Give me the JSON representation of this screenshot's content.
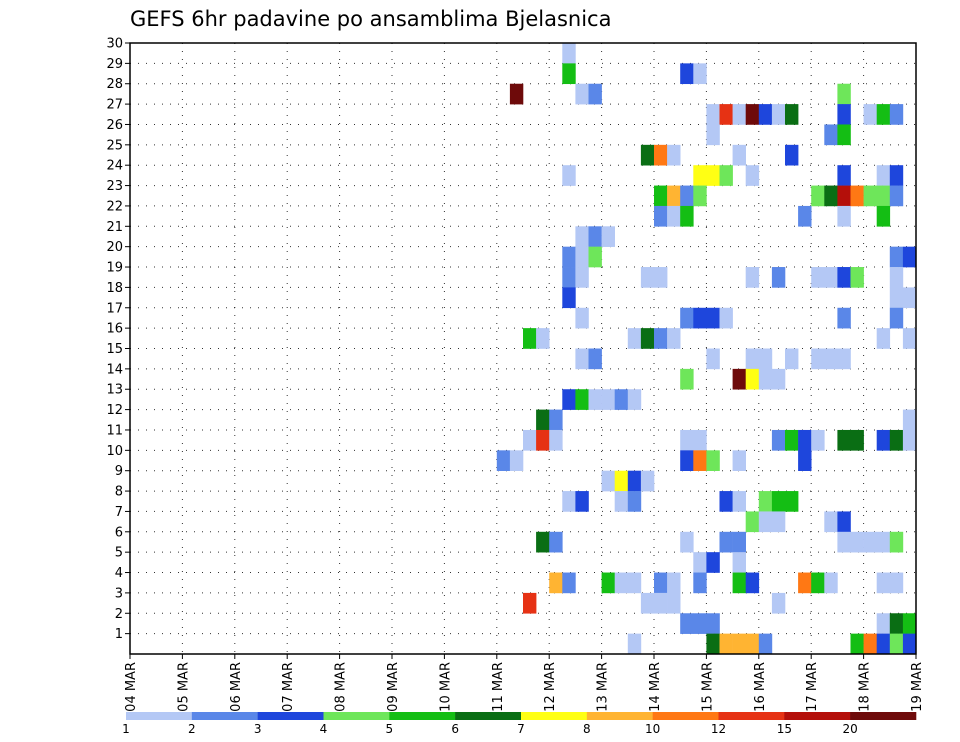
{
  "chart_data": {
    "type": "heatmap",
    "title": "GEFS 6hr padavine po ansamblima Bjelasnica",
    "x_tick_labels": [
      "04 MAR",
      "05 MAR",
      "06 MAR",
      "07 MAR",
      "08 MAR",
      "09 MAR",
      "10 MAR",
      "11 MAR",
      "12 MAR",
      "13 MAR",
      "14 MAR",
      "15 MAR",
      "16 MAR",
      "17 MAR",
      "18 MAR",
      "19 MAR"
    ],
    "y_tick_labels": [
      "1",
      "2",
      "3",
      "4",
      "5",
      "6",
      "7",
      "8",
      "9",
      "10",
      "11",
      "12",
      "13",
      "14",
      "15",
      "16",
      "17",
      "18",
      "19",
      "20",
      "21",
      "22",
      "23",
      "24",
      "25",
      "26",
      "27",
      "28",
      "29",
      "30"
    ],
    "x_range_days": [
      4,
      19
    ],
    "y_range": [
      0,
      30
    ],
    "grid": "dotted",
    "legend_position": "bottom",
    "colorbar": {
      "labels": [
        "1",
        "2",
        "3",
        "4",
        "5",
        "6",
        "7",
        "8",
        "10",
        "12",
        "15",
        "20"
      ],
      "colors": [
        "#b4c8f5",
        "#5a87e8",
        "#1e46dc",
        "#6ee65a",
        "#14be14",
        "#0a6e14",
        "#ffff14",
        "#ffb432",
        "#ff7814",
        "#e63214",
        "#b40f0a",
        "#6e0a0a"
      ]
    },
    "cells": [
      [
        12.25,
        30,
        0
      ],
      [
        12.25,
        29,
        4
      ],
      [
        12.5,
        28,
        0
      ],
      [
        12.75,
        28,
        1
      ],
      [
        14.5,
        29,
        2
      ],
      [
        14.75,
        29,
        0
      ],
      [
        11.25,
        28,
        11
      ],
      [
        17.5,
        28,
        3
      ],
      [
        15,
        27,
        0
      ],
      [
        15.25,
        27,
        9
      ],
      [
        15.5,
        27,
        0
      ],
      [
        15.75,
        27,
        11
      ],
      [
        16,
        27,
        2
      ],
      [
        16.25,
        27,
        0
      ],
      [
        16.5,
        27,
        5
      ],
      [
        17.5,
        27,
        2
      ],
      [
        18,
        27,
        0
      ],
      [
        18.25,
        27,
        4
      ],
      [
        18.5,
        27,
        1
      ],
      [
        15,
        26,
        0
      ],
      [
        17.25,
        26,
        1
      ],
      [
        17.5,
        26,
        4
      ],
      [
        13.75,
        25,
        5
      ],
      [
        14,
        25,
        8
      ],
      [
        14.25,
        25,
        0
      ],
      [
        15.5,
        25,
        0
      ],
      [
        16.5,
        25,
        2
      ],
      [
        12.25,
        24,
        0
      ],
      [
        14.75,
        24,
        6
      ],
      [
        15,
        24,
        6
      ],
      [
        15.25,
        24,
        3
      ],
      [
        15.75,
        24,
        0
      ],
      [
        17.5,
        24,
        2
      ],
      [
        18.25,
        24,
        0
      ],
      [
        18.5,
        24,
        2
      ],
      [
        14,
        23,
        4
      ],
      [
        14.25,
        23,
        7
      ],
      [
        14.5,
        23,
        1
      ],
      [
        14.75,
        23,
        3
      ],
      [
        17,
        23,
        3
      ],
      [
        17.25,
        23,
        5
      ],
      [
        17.5,
        23,
        10
      ],
      [
        17.75,
        23,
        8
      ],
      [
        18,
        23,
        3
      ],
      [
        18.25,
        23,
        3
      ],
      [
        18.5,
        23,
        1
      ],
      [
        14,
        22,
        1
      ],
      [
        14.25,
        22,
        0
      ],
      [
        14.5,
        22,
        4
      ],
      [
        16.75,
        22,
        1
      ],
      [
        17.5,
        22,
        0
      ],
      [
        18.25,
        22,
        4
      ],
      [
        12.5,
        21,
        0
      ],
      [
        12.75,
        21,
        1
      ],
      [
        13,
        21,
        0
      ],
      [
        18.5,
        20,
        1
      ],
      [
        18.75,
        20,
        2
      ],
      [
        12.25,
        20,
        1
      ],
      [
        12.5,
        20,
        0
      ],
      [
        12.75,
        20,
        3
      ],
      [
        12.25,
        19,
        1
      ],
      [
        12.5,
        19,
        0
      ],
      [
        13.75,
        19,
        0
      ],
      [
        14,
        19,
        0
      ],
      [
        15.75,
        19,
        0
      ],
      [
        16.25,
        19,
        1
      ],
      [
        17,
        19,
        0
      ],
      [
        17.25,
        19,
        0
      ],
      [
        17.5,
        19,
        2
      ],
      [
        17.75,
        19,
        3
      ],
      [
        18.5,
        19,
        0
      ],
      [
        12.25,
        18,
        2
      ],
      [
        18.5,
        18,
        0
      ],
      [
        18.75,
        18,
        0
      ],
      [
        12.5,
        17,
        0
      ],
      [
        14.5,
        17,
        1
      ],
      [
        14.75,
        17,
        2
      ],
      [
        15,
        17,
        2
      ],
      [
        15.25,
        17,
        0
      ],
      [
        17.5,
        17,
        1
      ],
      [
        18.5,
        17,
        1
      ],
      [
        11.5,
        16,
        4
      ],
      [
        11.75,
        16,
        0
      ],
      [
        13.5,
        16,
        0
      ],
      [
        13.75,
        16,
        5
      ],
      [
        14,
        16,
        1
      ],
      [
        14.25,
        16,
        0
      ],
      [
        18.25,
        16,
        0
      ],
      [
        18.75,
        16,
        0
      ],
      [
        12.5,
        15,
        0
      ],
      [
        12.75,
        15,
        1
      ],
      [
        15,
        15,
        0
      ],
      [
        15.75,
        15,
        0
      ],
      [
        16,
        15,
        0
      ],
      [
        16.5,
        15,
        0
      ],
      [
        17,
        15,
        0
      ],
      [
        17.25,
        15,
        0
      ],
      [
        17.5,
        15,
        0
      ],
      [
        14.5,
        14,
        3
      ],
      [
        15.5,
        14,
        11
      ],
      [
        15.75,
        14,
        6
      ],
      [
        16,
        14,
        0
      ],
      [
        16.25,
        14,
        0
      ],
      [
        12.25,
        13,
        2
      ],
      [
        12.5,
        13,
        4
      ],
      [
        12.75,
        13,
        0
      ],
      [
        13,
        13,
        0
      ],
      [
        13.25,
        13,
        1
      ],
      [
        13.5,
        13,
        0
      ],
      [
        11.75,
        12,
        5
      ],
      [
        12,
        12,
        1
      ],
      [
        18.75,
        12,
        0
      ],
      [
        11.5,
        11,
        0
      ],
      [
        11.75,
        11,
        9
      ],
      [
        12,
        11,
        0
      ],
      [
        14.5,
        11,
        0
      ],
      [
        14.75,
        11,
        0
      ],
      [
        16.25,
        11,
        1
      ],
      [
        16.5,
        11,
        4
      ],
      [
        16.75,
        11,
        2
      ],
      [
        17,
        11,
        0
      ],
      [
        17.5,
        11,
        5
      ],
      [
        17.75,
        11,
        5
      ],
      [
        18.25,
        11,
        2
      ],
      [
        18.5,
        11,
        5
      ],
      [
        18.75,
        11,
        0
      ],
      [
        11,
        10,
        1
      ],
      [
        11.25,
        10,
        0
      ],
      [
        14.5,
        10,
        2
      ],
      [
        14.75,
        10,
        8
      ],
      [
        15,
        10,
        3
      ],
      [
        15.5,
        10,
        0
      ],
      [
        16.75,
        10,
        2
      ],
      [
        13,
        9,
        0
      ],
      [
        13.25,
        9,
        6
      ],
      [
        13.5,
        9,
        2
      ],
      [
        13.75,
        9,
        0
      ],
      [
        12.25,
        8,
        0
      ],
      [
        12.5,
        8,
        2
      ],
      [
        13.25,
        8,
        0
      ],
      [
        13.5,
        8,
        1
      ],
      [
        15.25,
        8,
        2
      ],
      [
        15.5,
        8,
        0
      ],
      [
        16,
        8,
        3
      ],
      [
        16.25,
        8,
        4
      ],
      [
        16.5,
        8,
        4
      ],
      [
        15.75,
        7,
        3
      ],
      [
        16,
        7,
        0
      ],
      [
        16.25,
        7,
        0
      ],
      [
        17.25,
        7,
        0
      ],
      [
        17.5,
        7,
        2
      ],
      [
        11.75,
        6,
        5
      ],
      [
        12,
        6,
        1
      ],
      [
        14.5,
        6,
        0
      ],
      [
        15.25,
        6,
        1
      ],
      [
        15.5,
        6,
        1
      ],
      [
        17.5,
        6,
        0
      ],
      [
        17.75,
        6,
        0
      ],
      [
        18,
        6,
        0
      ],
      [
        18.25,
        6,
        0
      ],
      [
        18.5,
        6,
        3
      ],
      [
        14.75,
        5,
        0
      ],
      [
        15,
        5,
        2
      ],
      [
        15.5,
        5,
        0
      ],
      [
        12,
        4,
        7
      ],
      [
        12.25,
        4,
        1
      ],
      [
        13,
        4,
        4
      ],
      [
        13.25,
        4,
        0
      ],
      [
        13.5,
        4,
        0
      ],
      [
        14,
        4,
        1
      ],
      [
        14.25,
        4,
        0
      ],
      [
        14.75,
        4,
        1
      ],
      [
        15.5,
        4,
        4
      ],
      [
        15.75,
        4,
        2
      ],
      [
        16.75,
        4,
        8
      ],
      [
        17,
        4,
        4
      ],
      [
        17.25,
        4,
        0
      ],
      [
        18.25,
        4,
        0
      ],
      [
        18.5,
        4,
        0
      ],
      [
        11.5,
        3,
        9
      ],
      [
        13.75,
        3,
        0
      ],
      [
        14,
        3,
        0
      ],
      [
        14.25,
        3,
        0
      ],
      [
        16.25,
        3,
        0
      ],
      [
        14.5,
        2,
        1
      ],
      [
        14.75,
        2,
        1
      ],
      [
        15,
        2,
        1
      ],
      [
        18.25,
        2,
        0
      ],
      [
        18.5,
        2,
        5
      ],
      [
        18.75,
        2,
        4
      ],
      [
        13.5,
        1,
        0
      ],
      [
        15,
        1,
        5
      ],
      [
        15.25,
        1,
        7
      ],
      [
        15.5,
        1,
        7
      ],
      [
        15.75,
        1,
        7
      ],
      [
        16,
        1,
        1
      ],
      [
        17.75,
        1,
        4
      ],
      [
        18,
        1,
        8
      ],
      [
        18.25,
        1,
        2
      ],
      [
        18.5,
        1,
        3
      ],
      [
        18.75,
        1,
        2
      ]
    ]
  }
}
